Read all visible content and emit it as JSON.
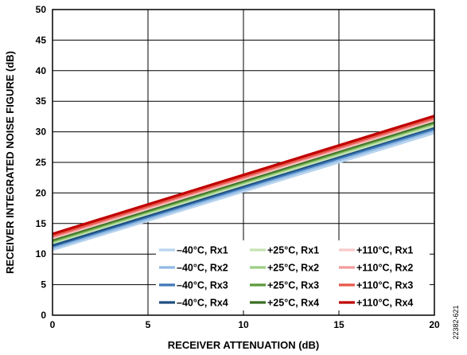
{
  "chart_data": {
    "type": "line",
    "xlabel": "RECEIVER ATTENUATION (dB)",
    "ylabel": "RECEIVER INTEGRATED NOISE FIGURE (dB)",
    "xlim": [
      0,
      20
    ],
    "ylim": [
      0,
      50
    ],
    "xticks": [
      "0",
      "5",
      "10",
      "15",
      "20"
    ],
    "yticks": [
      "0",
      "5",
      "10",
      "15",
      "20",
      "25",
      "30",
      "35",
      "40",
      "45",
      "50"
    ],
    "grid": true,
    "legend_position": "bottom-right",
    "x": [
      0,
      20
    ],
    "series": [
      {
        "name": "–40°C, Rx1",
        "color": "#b8d4ee",
        "values": [
          10.7,
          29.8
        ]
      },
      {
        "name": "–40°C, Rx2",
        "color": "#8fb9e3",
        "values": [
          11.0,
          30.2
        ]
      },
      {
        "name": "–40°C, Rx3",
        "color": "#3e78b8",
        "values": [
          11.3,
          30.5
        ]
      },
      {
        "name": "–40°C, Rx4",
        "color": "#1d4e80",
        "values": [
          11.5,
          30.8
        ]
      },
      {
        "name": "+25°C, Rx1",
        "color": "#c6e3b4",
        "values": [
          11.8,
          31.0
        ]
      },
      {
        "name": "+25°C, Rx2",
        "color": "#9ccf84",
        "values": [
          12.0,
          31.3
        ]
      },
      {
        "name": "+25°C, Rx3",
        "color": "#5c9a3c",
        "values": [
          12.2,
          31.5
        ]
      },
      {
        "name": "+25°C, Rx4",
        "color": "#3a6e24",
        "values": [
          12.4,
          31.7
        ]
      },
      {
        "name": "+110°C, Rx1",
        "color": "#f7c9c9",
        "values": [
          12.6,
          31.9
        ]
      },
      {
        "name": "+110°C, Rx2",
        "color": "#f29a9a",
        "values": [
          12.8,
          32.1
        ]
      },
      {
        "name": "+110°C, Rx3",
        "color": "#e8584a",
        "values": [
          13.0,
          32.3
        ]
      },
      {
        "name": "+110°C, Rx4",
        "color": "#c00000",
        "values": [
          13.3,
          32.6
        ]
      }
    ]
  },
  "figure_id": "22382-621"
}
